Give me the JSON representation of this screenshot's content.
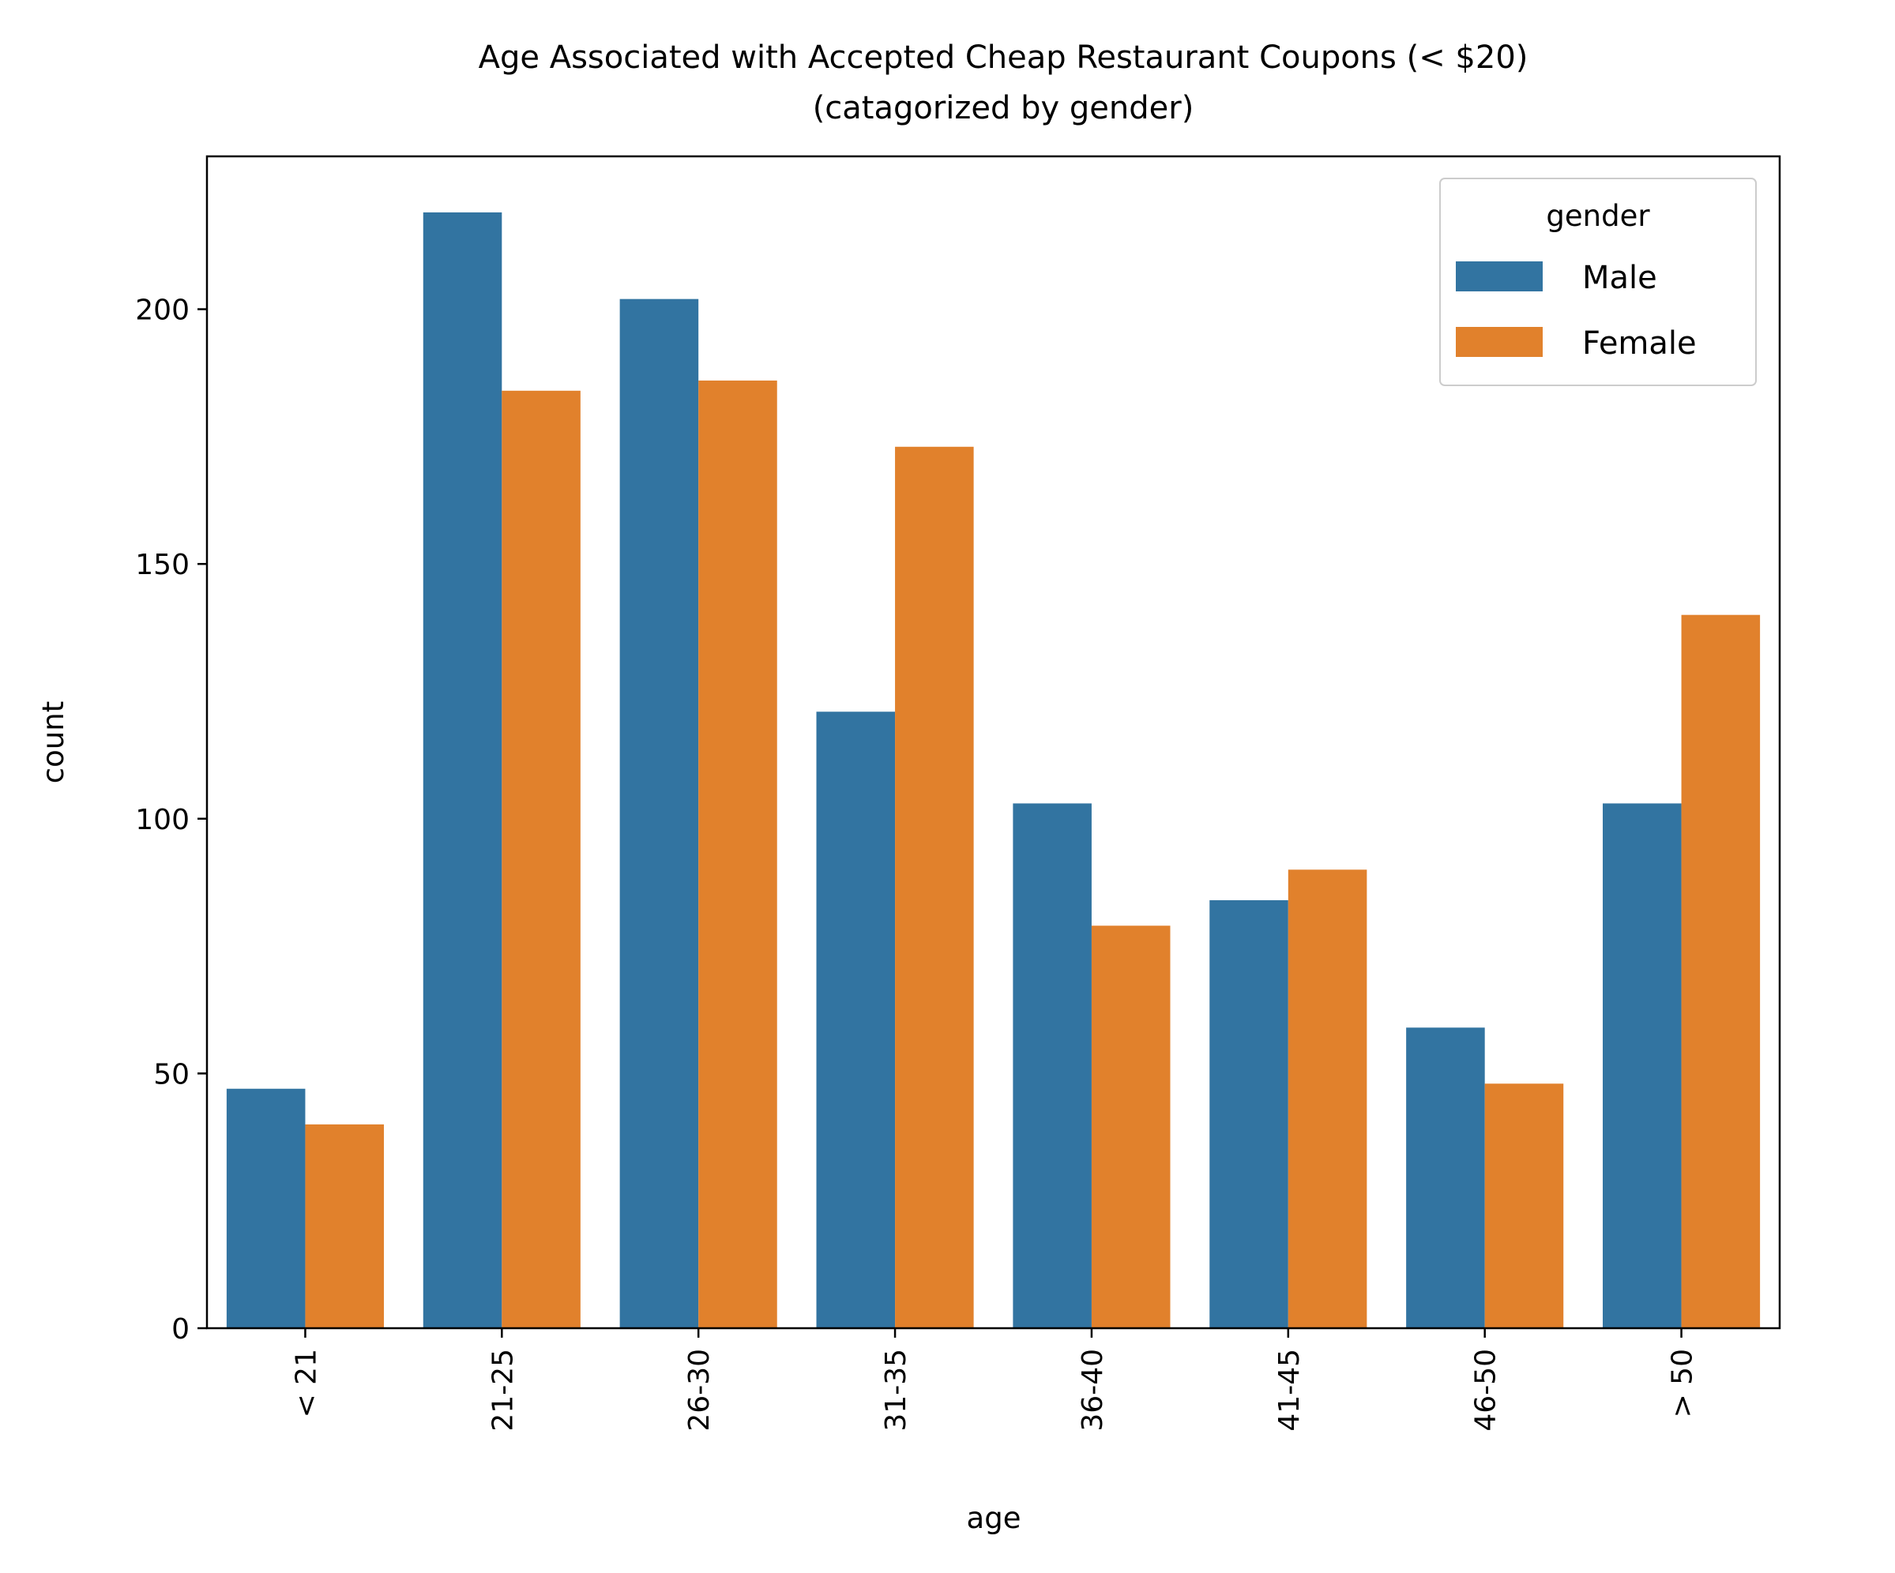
{
  "chart_data": {
    "type": "bar",
    "title": "Age Associated with Accepted Cheap Restaurant Coupons (< $20)",
    "subtitle": "(catagorized by gender)",
    "xlabel": "age",
    "ylabel": "count",
    "categories": [
      "< 21",
      "21-25",
      "26-30",
      "31-35",
      "36-40",
      "41-45",
      "46-50",
      "> 50"
    ],
    "ylim": [
      0,
      230
    ],
    "yticks": [
      0,
      50,
      100,
      150,
      200
    ],
    "legend_title": "gender",
    "legend_position": "top-right",
    "grid": false,
    "series": [
      {
        "name": "Male",
        "color": "#3274a1",
        "values": [
          47,
          219,
          202,
          121,
          103,
          84,
          59,
          103
        ]
      },
      {
        "name": "Female",
        "color": "#e1812c",
        "values": [
          40,
          184,
          186,
          173,
          79,
          90,
          48,
          140
        ]
      }
    ]
  }
}
